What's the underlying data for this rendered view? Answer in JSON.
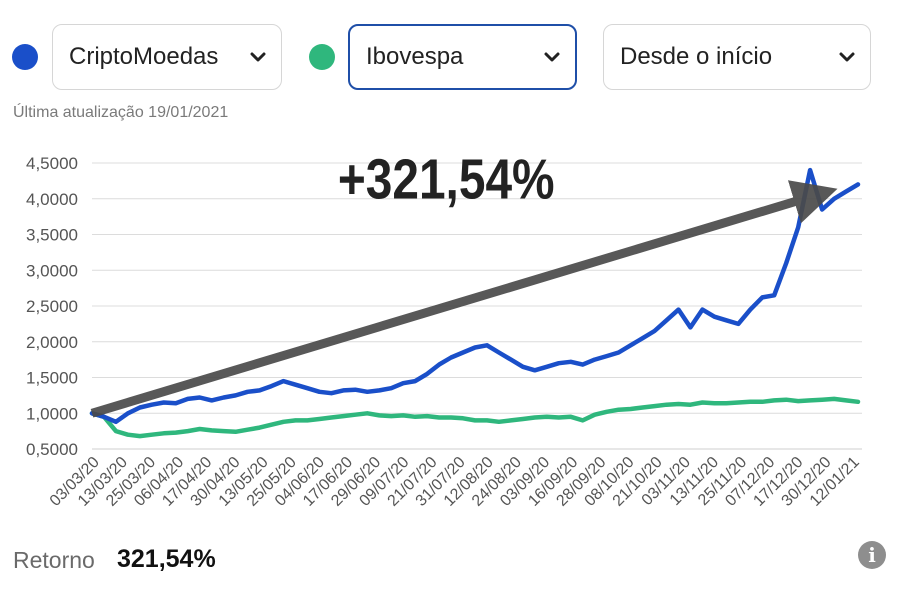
{
  "selectors": [
    {
      "label": "CriptoMoedas",
      "dot_color": "#1a4fc9",
      "active": false
    },
    {
      "label": "Ibovespa",
      "dot_color": "#2fb77d",
      "active": true
    },
    {
      "label": "Desde o início",
      "active": false
    }
  ],
  "last_update": "Última atualização 19/01/2021",
  "footer": {
    "label": "Retorno",
    "value": "321,54%"
  },
  "icons": {
    "chevron": "chevron-down-icon",
    "info": "info-icon"
  },
  "chart_data": {
    "type": "line",
    "annotation": "+321,54%",
    "y_ticks": [
      "0,5000",
      "1,0000",
      "1,5000",
      "2,0000",
      "2,5000",
      "3,0000",
      "3,5000",
      "4,0000",
      "4,5000"
    ],
    "ylim": [
      0.5,
      4.5
    ],
    "grid": true,
    "x_ticks": [
      "03/03/20",
      "13/03/20",
      "25/03/20",
      "06/04/20",
      "17/04/20",
      "30/04/20",
      "13/05/20",
      "25/05/20",
      "04/06/20",
      "17/06/20",
      "29/06/20",
      "09/07/20",
      "21/07/20",
      "31/07/20",
      "12/08/20",
      "24/08/20",
      "03/09/20",
      "16/09/20",
      "28/09/20",
      "08/10/20",
      "21/10/20",
      "03/11/20",
      "13/11/20",
      "25/11/20",
      "07/12/20",
      "17/12/20",
      "30/12/20",
      "12/01/21"
    ],
    "series": [
      {
        "name": "CriptoMoedas",
        "color": "#1a4fc9",
        "values": [
          1.0,
          0.95,
          0.88,
          1.0,
          1.08,
          1.12,
          1.15,
          1.14,
          1.2,
          1.22,
          1.18,
          1.22,
          1.25,
          1.3,
          1.32,
          1.38,
          1.45,
          1.4,
          1.35,
          1.3,
          1.28,
          1.32,
          1.33,
          1.3,
          1.32,
          1.35,
          1.42,
          1.45,
          1.55,
          1.68,
          1.78,
          1.85,
          1.92,
          1.95,
          1.85,
          1.75,
          1.65,
          1.6,
          1.65,
          1.7,
          1.72,
          1.68,
          1.75,
          1.8,
          1.85,
          1.95,
          2.05,
          2.15,
          2.3,
          2.45,
          2.2,
          2.45,
          2.35,
          2.3,
          2.25,
          2.45,
          2.62,
          2.65,
          3.1,
          3.6,
          4.4,
          3.85,
          4.0,
          4.1,
          4.2
        ]
      },
      {
        "name": "Ibovespa",
        "color": "#2fb77d",
        "values": [
          1.0,
          0.95,
          0.75,
          0.7,
          0.68,
          0.7,
          0.72,
          0.73,
          0.75,
          0.78,
          0.76,
          0.75,
          0.74,
          0.77,
          0.8,
          0.84,
          0.88,
          0.9,
          0.9,
          0.92,
          0.94,
          0.96,
          0.98,
          1.0,
          0.97,
          0.96,
          0.97,
          0.95,
          0.96,
          0.94,
          0.94,
          0.93,
          0.9,
          0.9,
          0.88,
          0.9,
          0.92,
          0.94,
          0.95,
          0.94,
          0.95,
          0.9,
          0.98,
          1.02,
          1.05,
          1.06,
          1.08,
          1.1,
          1.12,
          1.13,
          1.12,
          1.15,
          1.14,
          1.14,
          1.15,
          1.16,
          1.16,
          1.18,
          1.19,
          1.17,
          1.18,
          1.19,
          1.2,
          1.18,
          1.16
        ]
      }
    ]
  }
}
